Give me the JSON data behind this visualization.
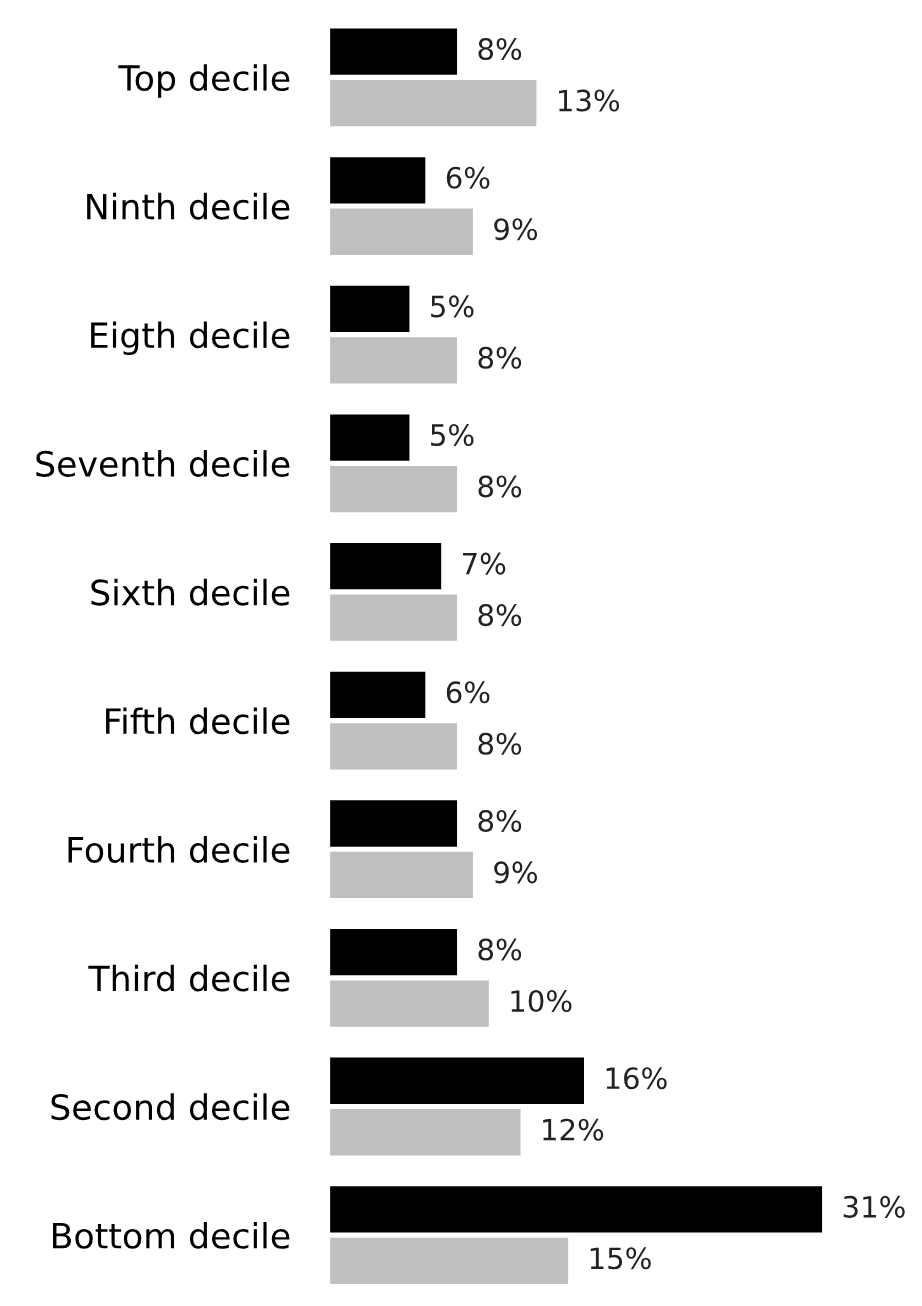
{
  "chart_data": {
    "type": "bar",
    "orientation": "horizontal",
    "categories": [
      "Top decile",
      "Ninth decile",
      "Eigth decile",
      "Seventh decile",
      "Sixth decile",
      "Fifth decile",
      "Fourth decile",
      "Third decile",
      "Second decile",
      "Bottom decile"
    ],
    "series": [
      {
        "color": "#000000",
        "values": [
          8,
          6,
          5,
          5,
          7,
          6,
          8,
          8,
          16,
          31
        ],
        "value_labels": [
          "8%",
          "6%",
          "5%",
          "5%",
          "7%",
          "6%",
          "8%",
          "8%",
          "16%",
          "31%"
        ]
      },
      {
        "color": "#bfbfbf",
        "values": [
          13,
          9,
          8,
          8,
          8,
          8,
          9,
          10,
          12,
          15
        ],
        "value_labels": [
          "13%",
          "9%",
          "8%",
          "8%",
          "8%",
          "8%",
          "9%",
          "10%",
          "12%",
          "15%"
        ]
      }
    ],
    "grid": false,
    "legend": false
  }
}
